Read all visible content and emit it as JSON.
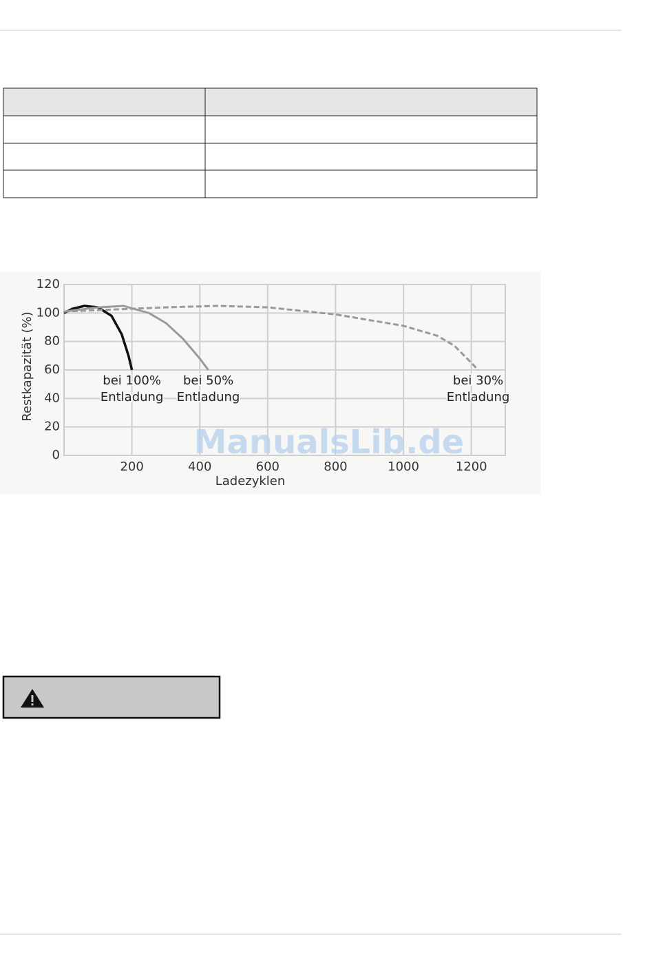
{
  "chart_data": {
    "type": "line",
    "xlabel": "Ladezyklen",
    "ylabel": "Restkapazität (%)",
    "xlim": [
      0,
      1300
    ],
    "ylim": [
      0,
      120
    ],
    "xticks": [
      200,
      400,
      600,
      800,
      1000,
      1200
    ],
    "yticks": [
      0,
      20,
      40,
      60,
      80,
      100,
      120
    ],
    "grid": true,
    "series": [
      {
        "label": [
          "bei 100%",
          "Entladung"
        ],
        "color": "#111111",
        "dash": false,
        "x": [
          0,
          25,
          60,
          100,
          140,
          170,
          190,
          200
        ],
        "values": [
          100,
          103,
          105,
          104,
          98,
          85,
          70,
          60
        ]
      },
      {
        "label": [
          "bei 50%",
          "Entladung"
        ],
        "color": "#9a9a9a",
        "dash": false,
        "x": [
          0,
          100,
          175,
          250,
          300,
          350,
          400,
          425
        ],
        "values": [
          101,
          104,
          105,
          100,
          93,
          82,
          68,
          60
        ]
      },
      {
        "label": [
          "bei 30%",
          "Entladung"
        ],
        "color": "#9a9a9a",
        "dash": true,
        "x": [
          0,
          100,
          300,
          450,
          600,
          800,
          1000,
          1100,
          1150,
          1200,
          1220
        ],
        "values": [
          101,
          102,
          104,
          105,
          104,
          99,
          91,
          84,
          77,
          65,
          60
        ]
      }
    ]
  },
  "watermark": "ManualsLib.de"
}
